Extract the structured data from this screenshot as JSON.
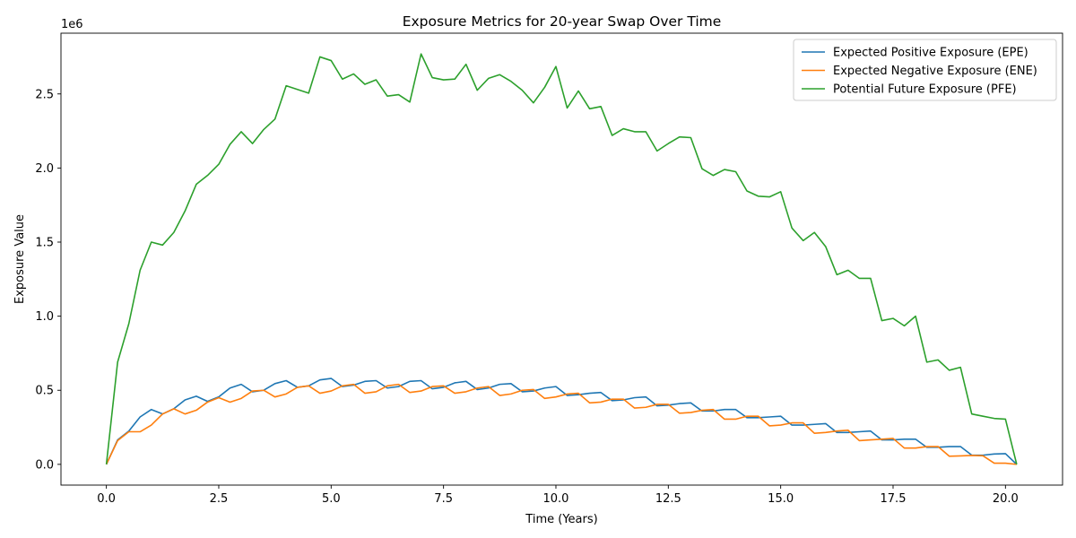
{
  "chart_data": {
    "type": "line",
    "title": "Exposure Metrics for 20-year Swap Over Time",
    "xlabel": "Time (Years)",
    "ylabel": "Exposure Value",
    "y_offset_label": "1e6",
    "xlim": [
      -1.01,
      21.27
    ],
    "ylim": [
      -140000,
      2910000
    ],
    "xticks": [
      0.0,
      2.5,
      5.0,
      7.5,
      10.0,
      12.5,
      15.0,
      17.5,
      20.0
    ],
    "xtick_labels": [
      "0.0",
      "2.5",
      "5.0",
      "7.5",
      "10.0",
      "12.5",
      "15.0",
      "17.5",
      "20.0"
    ],
    "yticks": [
      0,
      500000,
      1000000,
      1500000,
      2000000,
      2500000
    ],
    "ytick_labels": [
      "0.0",
      "0.5",
      "1.0",
      "1.5",
      "2.0",
      "2.5"
    ],
    "grid": false,
    "legend_position": "top-right",
    "x": [
      0,
      0.25,
      0.5,
      0.75,
      1.0,
      1.25,
      1.5,
      1.75,
      2.0,
      2.25,
      2.5,
      2.75,
      3.0,
      3.25,
      3.5,
      3.75,
      4.0,
      4.25,
      4.5,
      4.75,
      5.0,
      5.25,
      5.5,
      5.75,
      6.0,
      6.25,
      6.5,
      6.75,
      7.0,
      7.25,
      7.5,
      7.75,
      8.0,
      8.25,
      8.5,
      8.75,
      9.0,
      9.25,
      9.5,
      9.75,
      10.0,
      10.25,
      10.5,
      10.75,
      11.0,
      11.25,
      11.5,
      11.75,
      12.0,
      12.25,
      12.5,
      12.75,
      13.0,
      13.25,
      13.5,
      13.75,
      14.0,
      14.25,
      14.5,
      14.75,
      15.0,
      15.25,
      15.5,
      15.75,
      16.0,
      16.25,
      16.5,
      16.75,
      17.0,
      17.25,
      17.5,
      17.75,
      18.0,
      18.25,
      18.5,
      18.75,
      19.0,
      19.25,
      19.5,
      19.75,
      20.0,
      20.25
    ],
    "series": [
      {
        "name": "Expected Positive Exposure (EPE)",
        "color": "#1f77b4",
        "values": [
          0,
          165000,
          225000,
          320000,
          370000,
          340000,
          375000,
          435000,
          460000,
          425000,
          455000,
          515000,
          540000,
          490000,
          500000,
          545000,
          565000,
          520000,
          530000,
          570000,
          580000,
          525000,
          535000,
          560000,
          565000,
          515000,
          525000,
          560000,
          565000,
          510000,
          520000,
          550000,
          560000,
          505000,
          515000,
          540000,
          545000,
          490000,
          495000,
          515000,
          525000,
          465000,
          470000,
          480000,
          485000,
          430000,
          435000,
          450000,
          455000,
          395000,
          400000,
          410000,
          415000,
          360000,
          360000,
          370000,
          370000,
          315000,
          315000,
          320000,
          325000,
          265000,
          265000,
          270000,
          275000,
          215000,
          215000,
          220000,
          225000,
          165000,
          165000,
          170000,
          170000,
          115000,
          115000,
          120000,
          120000,
          62000,
          62000,
          70000,
          72000,
          0
        ]
      },
      {
        "name": "Expected Negative Exposure (ENE)",
        "color": "#ff7f0e",
        "values": [
          0,
          160000,
          220000,
          220000,
          265000,
          340000,
          375000,
          340000,
          365000,
          420000,
          450000,
          420000,
          445000,
          495000,
          500000,
          455000,
          475000,
          520000,
          530000,
          480000,
          495000,
          530000,
          540000,
          480000,
          490000,
          530000,
          540000,
          485000,
          495000,
          525000,
          530000,
          480000,
          490000,
          515000,
          525000,
          465000,
          475000,
          500000,
          505000,
          445000,
          455000,
          475000,
          480000,
          415000,
          420000,
          440000,
          440000,
          380000,
          385000,
          405000,
          405000,
          345000,
          350000,
          365000,
          370000,
          305000,
          305000,
          325000,
          325000,
          260000,
          265000,
          280000,
          280000,
          210000,
          215000,
          225000,
          230000,
          160000,
          165000,
          170000,
          175000,
          110000,
          110000,
          120000,
          120000,
          55000,
          57000,
          60000,
          58000,
          8000,
          8000,
          0
        ]
      },
      {
        "name": "Potential Future Exposure (PFE)",
        "color": "#2ca02c",
        "values": [
          0,
          690000,
          950000,
          1310000,
          1500000,
          1480000,
          1565000,
          1710000,
          1890000,
          1950000,
          2025000,
          2160000,
          2245000,
          2165000,
          2260000,
          2330000,
          2555000,
          2530000,
          2505000,
          2750000,
          2725000,
          2600000,
          2635000,
          2565000,
          2595000,
          2485000,
          2495000,
          2445000,
          2770000,
          2610000,
          2595000,
          2600000,
          2700000,
          2525000,
          2605000,
          2630000,
          2585000,
          2525000,
          2440000,
          2545000,
          2685000,
          2405000,
          2520000,
          2400000,
          2415000,
          2220000,
          2265000,
          2245000,
          2245000,
          2115000,
          2165000,
          2210000,
          2205000,
          1995000,
          1950000,
          1990000,
          1975000,
          1845000,
          1810000,
          1805000,
          1840000,
          1595000,
          1510000,
          1565000,
          1470000,
          1280000,
          1310000,
          1255000,
          1255000,
          970000,
          985000,
          935000,
          1000000,
          690000,
          705000,
          635000,
          655000,
          340000,
          325000,
          310000,
          305000,
          0
        ]
      }
    ]
  }
}
